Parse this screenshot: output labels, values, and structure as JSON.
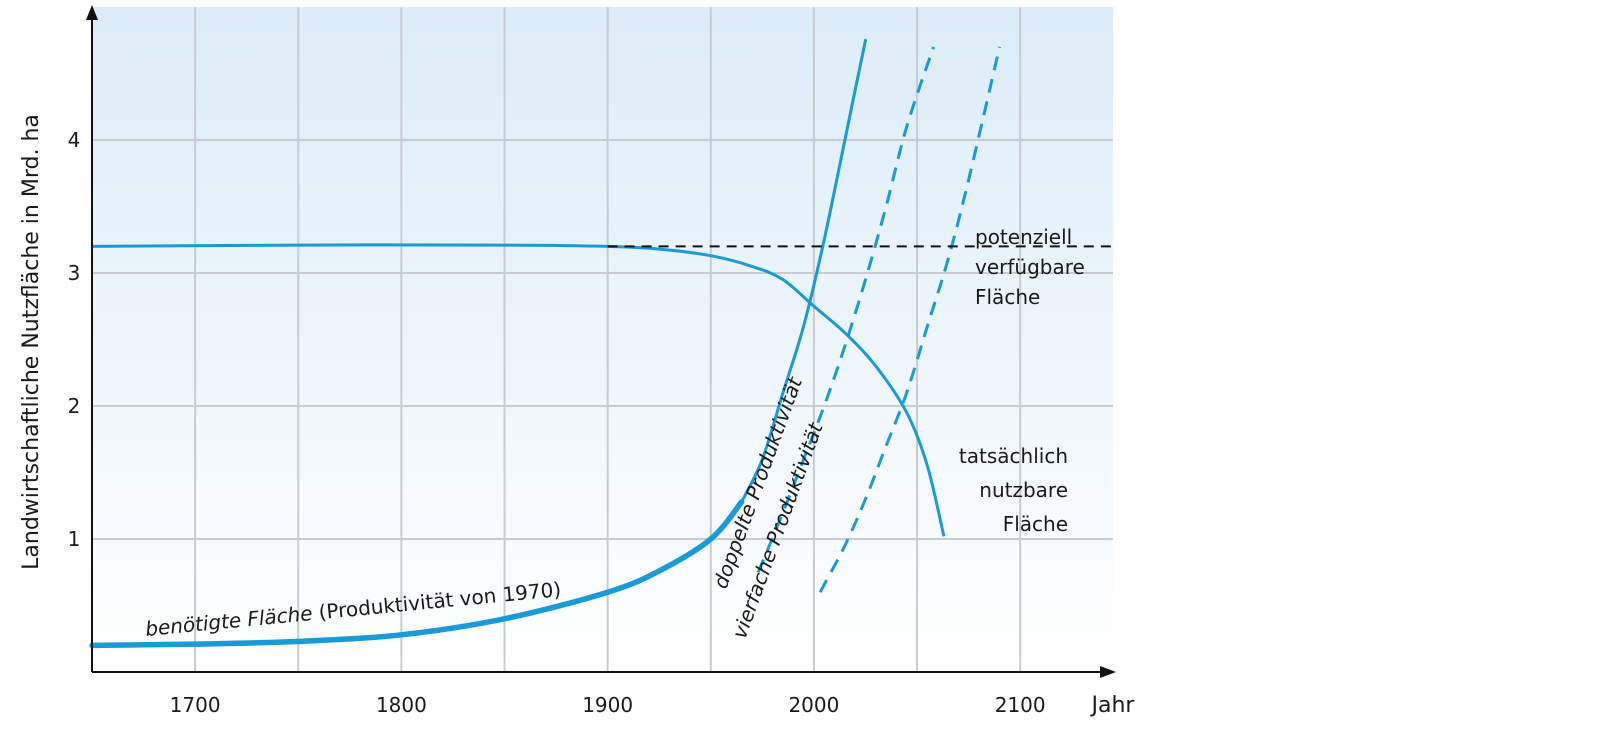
{
  "chart_data": {
    "type": "line",
    "xlabel": "Jahr",
    "ylabel": "Landwirtschaftliche Nutzfläche in Mrd. ha",
    "xlim": [
      1650,
      2145
    ],
    "ylim": [
      0,
      5
    ],
    "x_ticks": [
      1700,
      1800,
      1900,
      2000,
      2100
    ],
    "y_ticks": [
      1,
      2,
      3,
      4
    ],
    "grid": true,
    "colors": {
      "line": "#1a9ad6",
      "reference": "#111111",
      "grid": "#c8ccd0",
      "bg_top": "#dcecf8"
    },
    "series": [
      {
        "id": "benoetigt",
        "x": [
          1650,
          1700,
          1750,
          1800,
          1850,
          1900,
          1925,
          1950,
          1965,
          1975,
          1985,
          1995,
          2005,
          2015,
          2025
        ],
        "y": [
          0.2,
          0.21,
          0.23,
          0.28,
          0.4,
          0.6,
          0.76,
          1.0,
          1.28,
          1.6,
          2.1,
          2.6,
          3.25,
          4.0,
          4.75
        ]
      },
      {
        "id": "doppelt",
        "dashed": true,
        "x": [
          1973,
          1985,
          1995,
          2005,
          2015,
          2025,
          2035,
          2045,
          2058
        ],
        "y": [
          0.75,
          1.2,
          1.6,
          2.0,
          2.45,
          2.95,
          3.5,
          4.1,
          4.7
        ]
      },
      {
        "id": "vierfach",
        "dashed": true,
        "x": [
          2003,
          2015,
          2025,
          2035,
          2045,
          2055,
          2065,
          2075,
          2090
        ],
        "y": [
          0.6,
          0.95,
          1.3,
          1.7,
          2.1,
          2.6,
          3.1,
          3.7,
          4.7
        ]
      },
      {
        "id": "tatsaechlich",
        "x": [
          1650,
          1750,
          1850,
          1900,
          1925,
          1950,
          1970,
          1985,
          2000,
          2015,
          2030,
          2045,
          2055,
          2063
        ],
        "y": [
          3.2,
          3.21,
          3.21,
          3.2,
          3.18,
          3.13,
          3.05,
          2.95,
          2.75,
          2.55,
          2.3,
          1.95,
          1.55,
          1.02
        ]
      },
      {
        "id": "potenziell",
        "dashed": true,
        "x": [
          1900,
          2145
        ],
        "y": [
          3.2,
          3.2
        ]
      }
    ],
    "annotations": [
      {
        "id": "potenziell",
        "lines": [
          "potenziell",
          "verfügbare",
          "Fläche"
        ]
      },
      {
        "id": "tatsaechlich",
        "lines": [
          "tatsächlich",
          "nutzbare",
          "Fläche"
        ]
      },
      {
        "id": "benoetigt",
        "text_italic": "benötigte Fläche",
        "text_plain": " (Produktivität von 1970)"
      },
      {
        "id": "doppelt",
        "text": "doppelte Produktivität"
      },
      {
        "id": "vierfach",
        "text": "vierfache Produktivität"
      }
    ]
  }
}
